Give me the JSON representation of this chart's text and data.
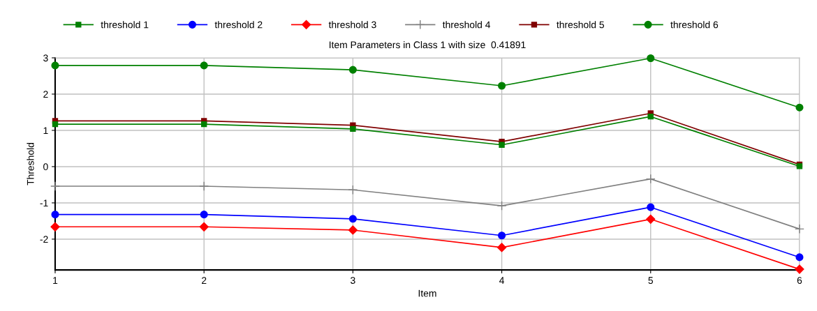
{
  "chart_data": {
    "type": "line",
    "title": "Item Parameters in Class 1 with size  0.41891",
    "xlabel": "Item",
    "ylabel": "Threshold",
    "x": [
      1,
      2,
      3,
      4,
      5,
      6
    ],
    "series": [
      {
        "name": "threshold 1",
        "color": "#008000",
        "marker": "square",
        "values": [
          1.17,
          1.17,
          1.04,
          0.6,
          1.38,
          0.01
        ]
      },
      {
        "name": "threshold 2",
        "color": "#0000ff",
        "marker": "circle",
        "values": [
          -1.32,
          -1.32,
          -1.44,
          -1.9,
          -1.12,
          -2.5
        ]
      },
      {
        "name": "threshold 3",
        "color": "#ff0000",
        "marker": "diamond",
        "values": [
          -1.66,
          -1.66,
          -1.75,
          -2.23,
          -1.45,
          -2.83
        ]
      },
      {
        "name": "threshold 4",
        "color": "#808080",
        "marker": "cross",
        "values": [
          -0.54,
          -0.54,
          -0.64,
          -1.08,
          -0.34,
          -1.72
        ]
      },
      {
        "name": "threshold 5",
        "color": "#800000",
        "marker": "square",
        "values": [
          1.26,
          1.26,
          1.14,
          0.69,
          1.47,
          0.06
        ]
      },
      {
        "name": "threshold 6",
        "color": "#008000",
        "marker": "circle",
        "values": [
          2.79,
          2.79,
          2.67,
          2.23,
          2.99,
          1.63
        ]
      }
    ],
    "xlim": [
      1,
      6
    ],
    "xticks": [
      1,
      2,
      3,
      4,
      5,
      6
    ],
    "ylim": [
      -2.85,
      3
    ],
    "yticks": [
      -2,
      -1,
      0,
      1,
      2,
      3
    ],
    "grid": true,
    "legend": "top",
    "line_style": "solid"
  }
}
